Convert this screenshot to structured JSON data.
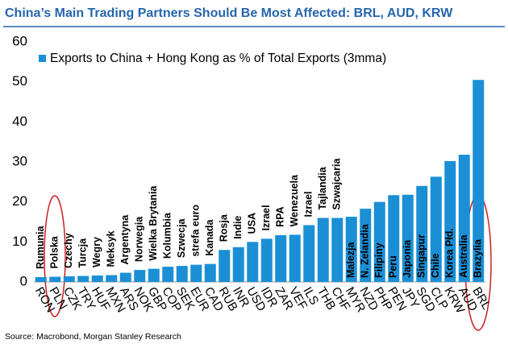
{
  "chart_data": {
    "type": "bar",
    "title": "China’s Main Trading Partners Should Be Most Affected: BRL, AUD, KRW",
    "categories": [
      "RON",
      "PLN",
      "CZK",
      "TRY",
      "HUF",
      "MXN",
      "ARS",
      "NOK",
      "GBP",
      "COP",
      "SEK",
      "EUR",
      "CAD",
      "RUB",
      "INR",
      "USD",
      "IDR",
      "ZAR",
      "VEF",
      "ILS",
      "THB",
      "CHF",
      "MYR",
      "NZD",
      "PHP",
      "PEN",
      "JPY",
      "SGD",
      "CLP",
      "KRW",
      "AUD",
      "BRL"
    ],
    "annotations": [
      "Rumunia",
      "Polska",
      "Czechy",
      "Turcja",
      "Wegry",
      "Meksyk",
      "Argentyna",
      "Norwegia",
      "Wielka Brytania",
      "Kolumbia",
      "Szwecja",
      "strefa euro",
      "Kanada",
      "Rosja",
      "Indie",
      "USA",
      "Izrael",
      "RPA",
      "Wenezuela",
      "Izrael",
      "Tajlandia",
      "Szwajcaria",
      "Malezja",
      "N. Zelandia",
      "Filipiny",
      "Peru",
      "Japonia",
      "Singapur",
      "Chile",
      "Korea Płd.",
      "Australia",
      "Brazylia"
    ],
    "series": [
      {
        "name": "Exports to China + Hong Kong as % of Total Exports (3mma)",
        "color": "#1b8fd6",
        "values": [
          1.2,
          1.3,
          1.4,
          1.5,
          1.6,
          1.7,
          2.3,
          3.0,
          3.3,
          3.8,
          4.0,
          4.3,
          4.5,
          8.0,
          8.7,
          10.0,
          10.8,
          11.7,
          11.8,
          14.2,
          16.0,
          16.0,
          16.3,
          18.3,
          20.0,
          21.7,
          21.8,
          24.0,
          26.3,
          30.2,
          31.8,
          50.5
        ]
      }
    ],
    "ylim": [
      0,
      60
    ],
    "yticks": [
      0,
      10,
      20,
      30,
      40,
      50,
      60
    ],
    "grid": false,
    "source": "Source: Macrobond, Morgan Stanley Research"
  }
}
